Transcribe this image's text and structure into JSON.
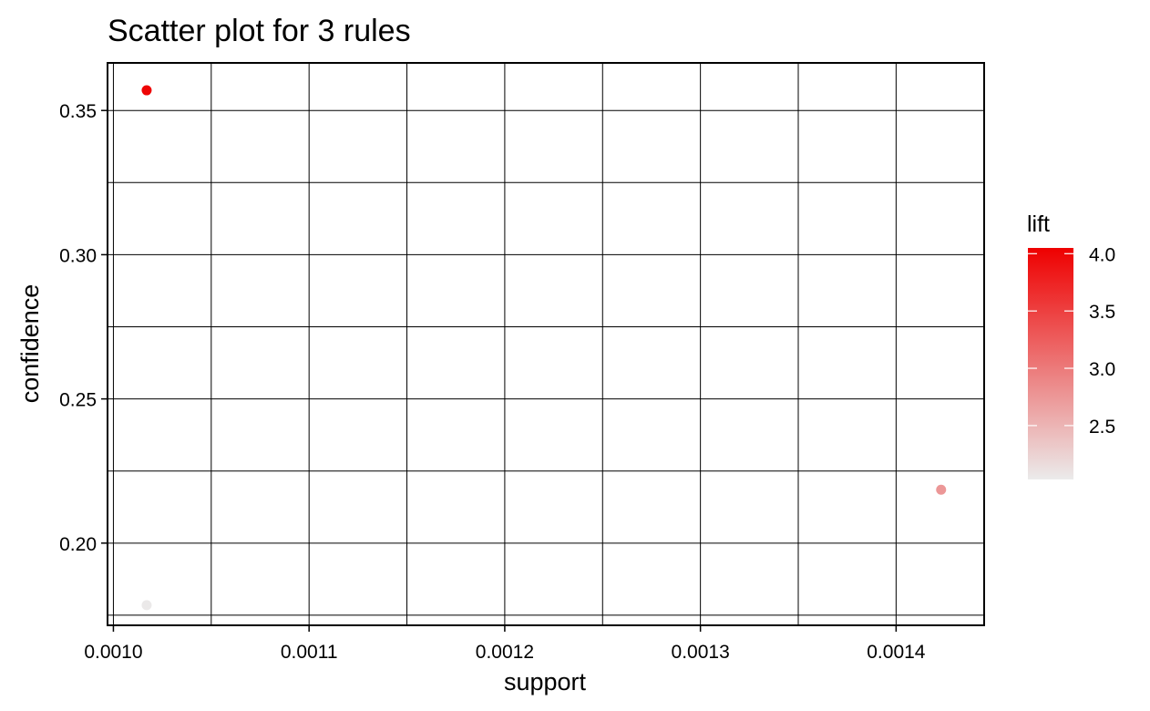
{
  "chart_data": {
    "type": "scatter",
    "title": "Scatter plot for 3 rules",
    "xlabel": "support",
    "ylabel": "confidence",
    "xlim": [
      0.000997,
      0.001445
    ],
    "ylim": [
      0.1715,
      0.3665
    ],
    "x_ticks": [
      0.001,
      0.0011,
      0.0012,
      0.0013,
      0.0014
    ],
    "x_tick_labels": [
      "0.0010",
      "0.0011",
      "0.0012",
      "0.0013",
      "0.0014"
    ],
    "y_ticks": [
      0.2,
      0.25,
      0.3,
      0.35
    ],
    "y_tick_labels": [
      "0.20",
      "0.25",
      "0.30",
      "0.35"
    ],
    "grid": true,
    "points": [
      {
        "support": 0.001017,
        "confidence": 0.357,
        "lift": 4.01
      },
      {
        "support": 0.001423,
        "confidence": 0.2185,
        "lift": 2.75
      },
      {
        "support": 0.001017,
        "confidence": 0.1785,
        "lift": 2.05
      }
    ],
    "color_scale": {
      "title": "lift",
      "min": 2.03,
      "max": 4.05,
      "low_color": "#ebebeb",
      "high_color": "#ee0000",
      "ticks": [
        2.5,
        3.0,
        3.5,
        4.0
      ],
      "tick_labels": [
        "2.5",
        "3.0",
        "3.5",
        "4.0"
      ],
      "position": "right"
    }
  }
}
